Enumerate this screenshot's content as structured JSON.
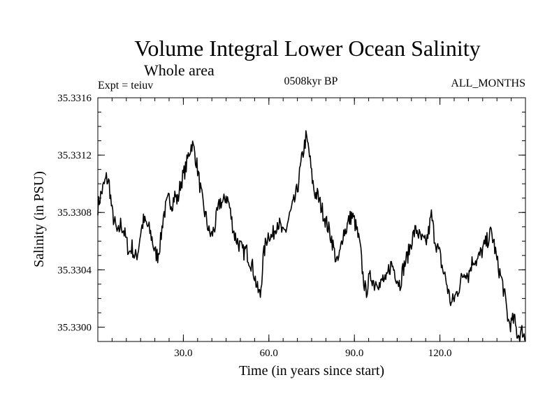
{
  "chart_data": {
    "type": "line",
    "title": "Volume Integral Lower Ocean Salinity",
    "subtitle": "Whole area",
    "experiment": "Expt = teiuv",
    "period": "0508kyr BP",
    "months": "ALL_MONTHS",
    "xlabel": "Time (in years since start)",
    "ylabel": "Salinity (in PSU)",
    "xlim": [
      0,
      150
    ],
    "ylim": [
      35.3299,
      35.3316
    ],
    "x_ticks": [
      30,
      60,
      90,
      120
    ],
    "x_tick_labels": [
      "30.0",
      "60.0",
      "90.0",
      "120.0"
    ],
    "y_ticks": [
      35.33,
      35.3304,
      35.3308,
      35.3312,
      35.3316
    ],
    "y_tick_labels": [
      "35.3300",
      "35.3304",
      "35.3308",
      "35.3312",
      "35.3316"
    ],
    "x_minor_step": 5,
    "y_minor_step": 0.0001,
    "grid": false,
    "line_color": "#000000",
    "series": [
      {
        "name": "salinity",
        "x": [
          0,
          1,
          2,
          3,
          4,
          5,
          6,
          7,
          8,
          9,
          10,
          11,
          12,
          13,
          14,
          15,
          16,
          17,
          18,
          19,
          20,
          21,
          22,
          23,
          24,
          25,
          26,
          27,
          28,
          29,
          30,
          31,
          32,
          33,
          34,
          35,
          36,
          37,
          38,
          39,
          40,
          41,
          42,
          43,
          44,
          45,
          46,
          47,
          48,
          49,
          50,
          51,
          52,
          53,
          54,
          55,
          56,
          57,
          58,
          59,
          60,
          61,
          62,
          63,
          64,
          65,
          66,
          67,
          68,
          69,
          70,
          71,
          72,
          73,
          74,
          75,
          76,
          77,
          78,
          79,
          80,
          81,
          82,
          83,
          84,
          85,
          86,
          87,
          88,
          89,
          90,
          91,
          92,
          93,
          94,
          95,
          96,
          97,
          98,
          99,
          100,
          101,
          102,
          103,
          104,
          105,
          106,
          107,
          108,
          109,
          110,
          111,
          112,
          113,
          114,
          115,
          116,
          117,
          118,
          119,
          120,
          121,
          122,
          123,
          124,
          125,
          126,
          127,
          128,
          129,
          130,
          131,
          132,
          133,
          134,
          135,
          136,
          137,
          138,
          139,
          140,
          141,
          142,
          143,
          144,
          145,
          146,
          147,
          148,
          149,
          150
        ],
        "values": [
          35.33084,
          35.33092,
          35.33098,
          35.33104,
          35.331,
          35.3308,
          35.33072,
          35.33064,
          35.33072,
          35.33068,
          35.3306,
          35.33052,
          35.33056,
          35.33048,
          35.33052,
          35.33066,
          35.33074,
          35.33072,
          35.33068,
          35.33062,
          35.33052,
          35.3305,
          35.3306,
          35.33078,
          35.33084,
          35.3309,
          35.33086,
          35.33092,
          35.33088,
          35.331,
          35.33106,
          35.33112,
          35.33122,
          35.33128,
          35.33122,
          35.3311,
          35.33096,
          35.33084,
          35.33076,
          35.33066,
          35.33064,
          35.3307,
          35.3308,
          35.33088,
          35.33086,
          35.33092,
          35.33086,
          35.33074,
          35.33064,
          35.3306,
          35.33056,
          35.33052,
          35.33054,
          35.33048,
          35.33044,
          35.33036,
          35.33026,
          35.33022,
          35.33048,
          35.3306,
          35.33066,
          35.33062,
          35.33068,
          35.33074,
          35.3307,
          35.33064,
          35.33068,
          35.33076,
          35.33082,
          35.33088,
          35.33096,
          35.3311,
          35.33122,
          35.33132,
          35.33124,
          35.33106,
          35.33094,
          35.33092,
          35.33086,
          35.3308,
          35.33074,
          35.33068,
          35.33062,
          35.33052,
          35.33044,
          35.33052,
          35.33066,
          35.33068,
          35.33074,
          35.33078,
          35.33074,
          35.33066,
          35.33056,
          35.33036,
          35.33024,
          35.33032,
          35.33036,
          35.3303,
          35.33034,
          35.33028,
          35.33034,
          35.3303,
          35.3304,
          35.33044,
          35.3304,
          35.33034,
          35.3303,
          35.3304,
          35.33046,
          35.33052,
          35.3306,
          35.33066,
          35.33068,
          35.33062,
          35.3306,
          35.33058,
          35.33066,
          35.33078,
          35.33064,
          35.33056,
          35.3305,
          35.3304,
          35.33034,
          35.33024,
          35.33016,
          35.3302,
          35.33024,
          35.3303,
          35.33036,
          35.3304,
          35.33036,
          35.33044,
          35.33048,
          35.33046,
          35.3305,
          35.33054,
          35.33058,
          35.33062,
          35.33066,
          35.33058,
          35.33046,
          35.33038,
          35.3303,
          35.33018,
          35.33004,
          35.33002,
          35.33006,
          35.32996,
          35.32994,
          35.32998,
          35.3299
        ]
      }
    ]
  }
}
